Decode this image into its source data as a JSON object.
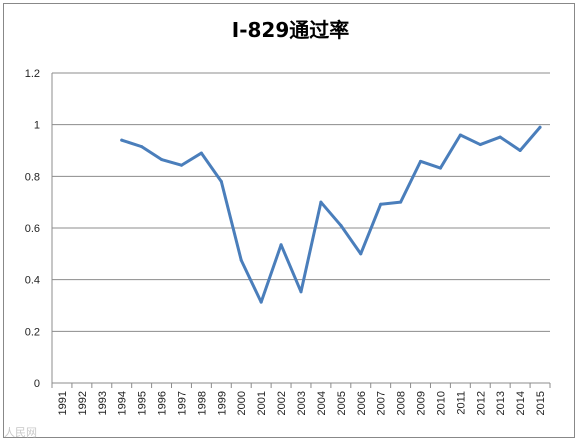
{
  "chart_data": {
    "type": "line",
    "title": "I-829通过率",
    "xlabel": "",
    "ylabel": "",
    "ylim": [
      0,
      1.2
    ],
    "yticks": [
      "0",
      "0.2",
      "0.4",
      "0.6",
      "0.8",
      "1",
      "1.2"
    ],
    "grid": true,
    "legend": "none",
    "line_color": "#4a7ebb",
    "categories": [
      "1991",
      "1992",
      "1993",
      "1994",
      "1995",
      "1996",
      "1997",
      "1998",
      "1999",
      "2000",
      "2001",
      "2002",
      "2003",
      "2004",
      "2005",
      "2006",
      "2007",
      "2008",
      "2009",
      "2010",
      "2011",
      "2012",
      "2013",
      "2014",
      "2015"
    ],
    "series": [
      {
        "values": [
          null,
          null,
          null,
          0.94,
          0.915,
          0.865,
          0.843,
          0.89,
          0.78,
          0.475,
          0.313,
          0.535,
          0.353,
          0.7,
          0.61,
          0.5,
          0.692,
          0.7,
          0.858,
          0.832,
          0.96,
          0.923,
          0.952,
          0.9,
          0.99
        ]
      }
    ]
  },
  "watermark": "人民网"
}
